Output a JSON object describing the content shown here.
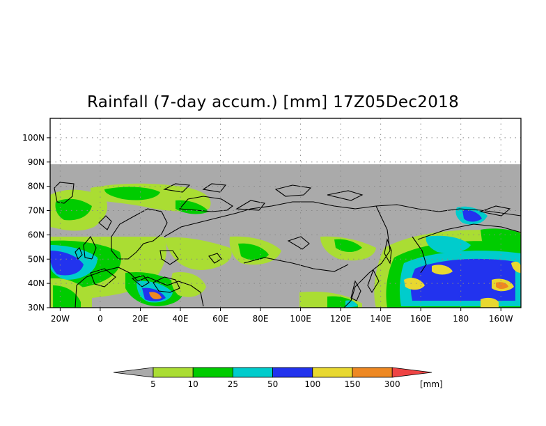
{
  "title": "Rainfall (7-day accum.) [mm] 17Z05Dec2018",
  "map": {
    "lat_labels": [
      "100N",
      "90N",
      "80N",
      "70N",
      "60N",
      "50N",
      "40N",
      "30N"
    ],
    "lon_labels": [
      "20W",
      "0",
      "20E",
      "40E",
      "60E",
      "80E",
      "100E",
      "120E",
      "140E",
      "160E",
      "180",
      "160W"
    ],
    "extent": {
      "lon_min": -25,
      "lon_max": 210,
      "lat_min": 30,
      "lat_max": 108
    },
    "no_data_color": "#aaaaaa",
    "gridlines": "dotted"
  },
  "legend": {
    "unit": "[mm]",
    "below_color": "#aaaaaa",
    "above_color": "#ee4444",
    "bins": [
      {
        "label": "5",
        "color": "#aadd33"
      },
      {
        "label": "10",
        "color": "#00cc00"
      },
      {
        "label": "25",
        "color": "#00cccc"
      },
      {
        "label": "50",
        "color": "#2233ee"
      },
      {
        "label": "100",
        "color": "#e8d830"
      },
      {
        "label": "150",
        "color": "#ee8822"
      },
      {
        "label": "300",
        "color": ""
      }
    ]
  }
}
